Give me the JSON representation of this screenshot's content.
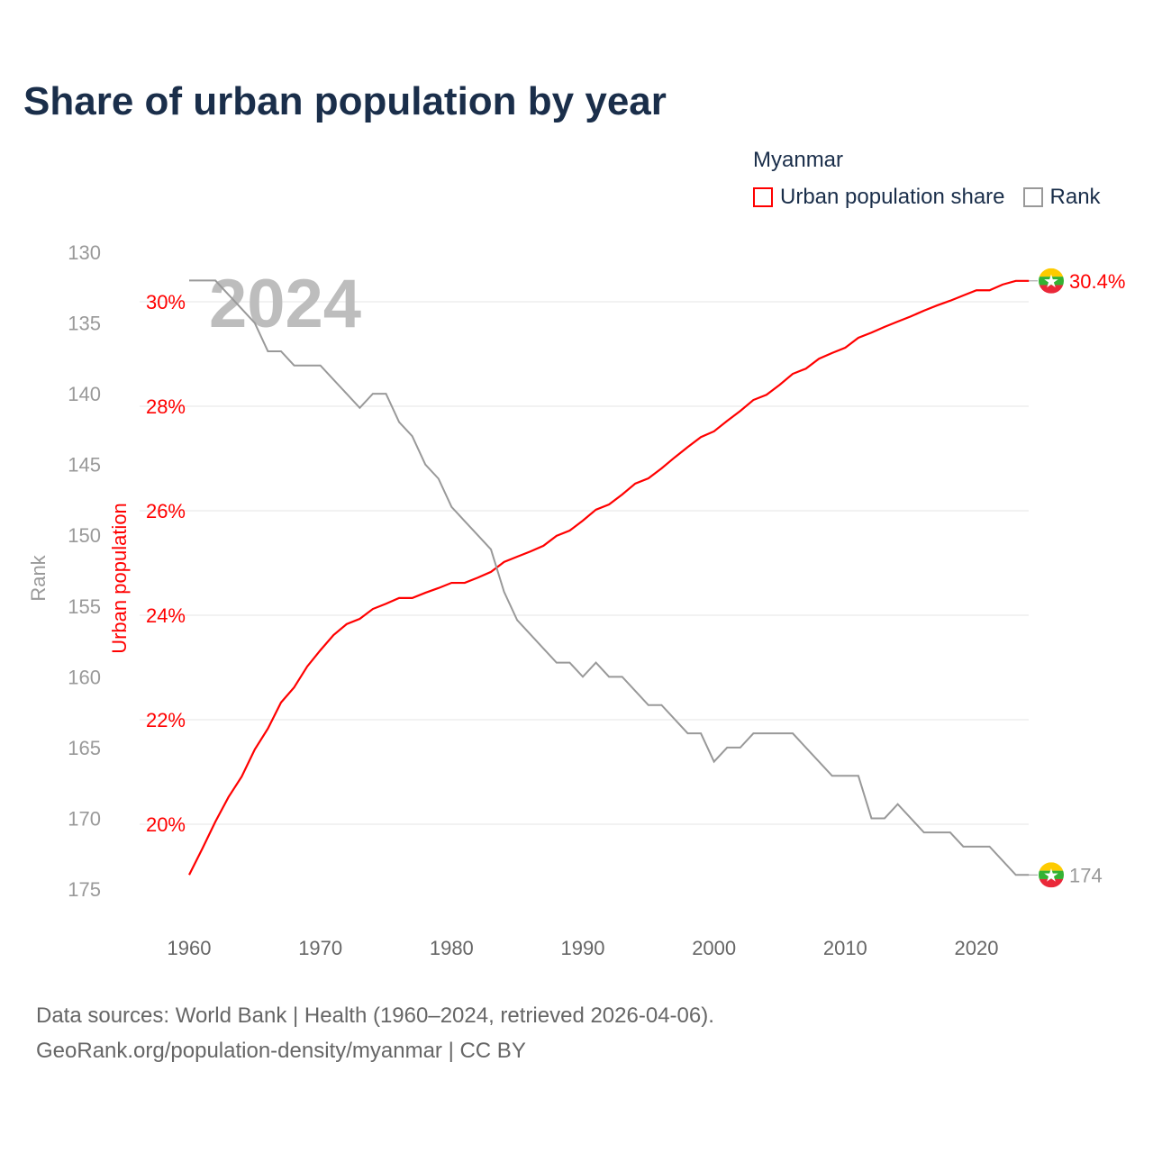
{
  "title": "Share of urban population by year",
  "legend": {
    "country": "Myanmar",
    "items": [
      {
        "label": "Urban population share",
        "color": "#ff0000"
      },
      {
        "label": "Rank",
        "color": "#999999"
      }
    ]
  },
  "watermark_year": "2024",
  "source": {
    "line1": "Data sources: World Bank | Health (1960–2024, retrieved 2026-04-06).",
    "line2": "GeoRank.org/population-density/myanmar | CC BY"
  },
  "chart_data": {
    "type": "line",
    "title": "Share of urban population by year",
    "xlabel": "",
    "x_ticks": [
      "1960",
      "1970",
      "1980",
      "1990",
      "2000",
      "2010",
      "2020"
    ],
    "xlim": [
      1960,
      2024
    ],
    "left_axis": {
      "label": "Rank",
      "ticks": [
        "130",
        "135",
        "140",
        "145",
        "150",
        "155",
        "160",
        "165",
        "170",
        "175"
      ],
      "ylim": [
        130,
        175
      ],
      "inverted": true
    },
    "right_axis": {
      "label": "Urban population",
      "ticks": [
        "20%",
        "22%",
        "24%",
        "26%",
        "28%",
        "30%"
      ],
      "ylim": [
        20,
        30
      ]
    },
    "x": [
      1960,
      1961,
      1962,
      1963,
      1964,
      1965,
      1966,
      1967,
      1968,
      1969,
      1970,
      1971,
      1972,
      1973,
      1974,
      1975,
      1976,
      1977,
      1978,
      1979,
      1980,
      1981,
      1982,
      1983,
      1984,
      1985,
      1986,
      1987,
      1988,
      1989,
      1990,
      1991,
      1992,
      1993,
      1994,
      1995,
      1996,
      1997,
      1998,
      1999,
      2000,
      2001,
      2002,
      2003,
      2004,
      2005,
      2006,
      2007,
      2008,
      2009,
      2010,
      2011,
      2012,
      2013,
      2014,
      2015,
      2016,
      2017,
      2018,
      2019,
      2020,
      2021,
      2022,
      2023,
      2024
    ],
    "series": [
      {
        "name": "Urban population share",
        "color": "#ff0000",
        "end_label": "30.4%",
        "values": [
          19.03,
          19.53,
          20.05,
          20.52,
          20.91,
          21.43,
          21.83,
          22.33,
          22.62,
          23.02,
          23.33,
          23.62,
          23.83,
          23.93,
          24.12,
          24.22,
          24.33,
          24.33,
          24.43,
          24.52,
          24.62,
          24.62,
          24.72,
          24.83,
          25.02,
          25.12,
          25.22,
          25.33,
          25.52,
          25.62,
          25.81,
          26.02,
          26.12,
          26.31,
          26.52,
          26.62,
          26.81,
          27.02,
          27.22,
          27.41,
          27.52,
          27.72,
          27.91,
          28.12,
          28.22,
          28.41,
          28.62,
          28.72,
          28.91,
          29.02,
          29.12,
          29.31,
          29.41,
          29.52,
          29.62,
          29.72,
          29.83,
          29.93,
          30.02,
          30.12,
          30.22,
          30.22,
          30.33,
          30.4,
          30.4
        ]
      },
      {
        "name": "Rank",
        "color": "#999999",
        "end_label": "174",
        "values": [
          132,
          132,
          132,
          133,
          134,
          135,
          137,
          137,
          138,
          138,
          138,
          139,
          140,
          141,
          140,
          140,
          142,
          143,
          145,
          146,
          148,
          149,
          150,
          151,
          154,
          156,
          157,
          158,
          159,
          159,
          160,
          159,
          160,
          160,
          161,
          162,
          162,
          163,
          164,
          164,
          166,
          165,
          165,
          164,
          164,
          164,
          164,
          165,
          166,
          167,
          167,
          167,
          170,
          170,
          169,
          170,
          171,
          171,
          171,
          172,
          172,
          172,
          173,
          174,
          174
        ]
      }
    ],
    "grid": true
  }
}
